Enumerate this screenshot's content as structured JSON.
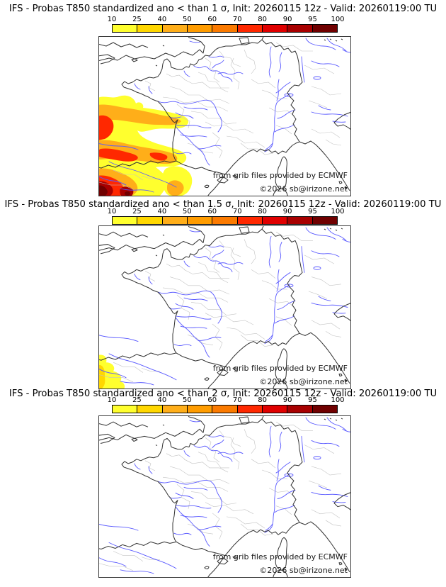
{
  "panels": [
    {
      "title": "IFS - Probas T850  standardized ano < than 1 σ, Init: 20260115 12z - Valid: 20260119:00 TU"
    },
    {
      "title": "IFS - Probas T850  standardized ano < than 1.5 σ, Init: 20260115 12z - Valid: 20260119:00 TU"
    },
    {
      "title": "IFS - Probas T850  standardized ano < than 2 σ, Init: 20260115 12z - Valid: 20260119:00 TU"
    }
  ],
  "colorbar": {
    "tick_labels": [
      "10",
      "25",
      "40",
      "50",
      "60",
      "70",
      "80",
      "90",
      "95",
      "100"
    ],
    "segment_colors": [
      "#ffff2e",
      "#ffd700",
      "#ffae19",
      "#ff9c00",
      "#fb7a00",
      "#ff2800",
      "#e00000",
      "#a80000",
      "#700000"
    ]
  },
  "credits": {
    "line1": "from grib files provided by ECMWF",
    "line2": "©2026 sb@irizone.net"
  },
  "map_colors": {
    "coastline": "#333333",
    "rivers": "#5a5aff",
    "boundaries": "#c3c3c3"
  }
}
